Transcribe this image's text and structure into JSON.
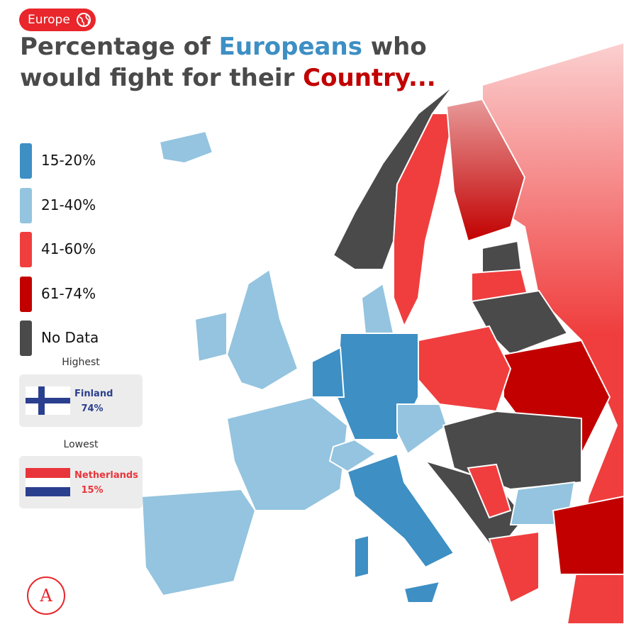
{
  "badge": "Europe",
  "title": {
    "parts": [
      {
        "text": "Percentage of ",
        "color": "#4a4a4a"
      },
      {
        "text": "Europeans",
        "color": "#3d8fc4"
      },
      {
        "text": " who would fight for their ",
        "color": "#4a4a4a"
      },
      {
        "text": "Country...",
        "color": "#c20000"
      }
    ]
  },
  "legend": [
    {
      "label": "15-20%",
      "color": "#3d8fc4"
    },
    {
      "label": "21-40%",
      "color": "#94c4df"
    },
    {
      "label": "41-60%",
      "color": "#f03e3e"
    },
    {
      "label": "61-74%",
      "color": "#c20000"
    },
    {
      "label": "No Data",
      "color": "#4a4a4a"
    }
  ],
  "highest": {
    "heading": "Highest",
    "country": "Finland",
    "value": "74%"
  },
  "lowest": {
    "heading": "Lowest",
    "country": "Netherlands",
    "value": "15%"
  }
}
